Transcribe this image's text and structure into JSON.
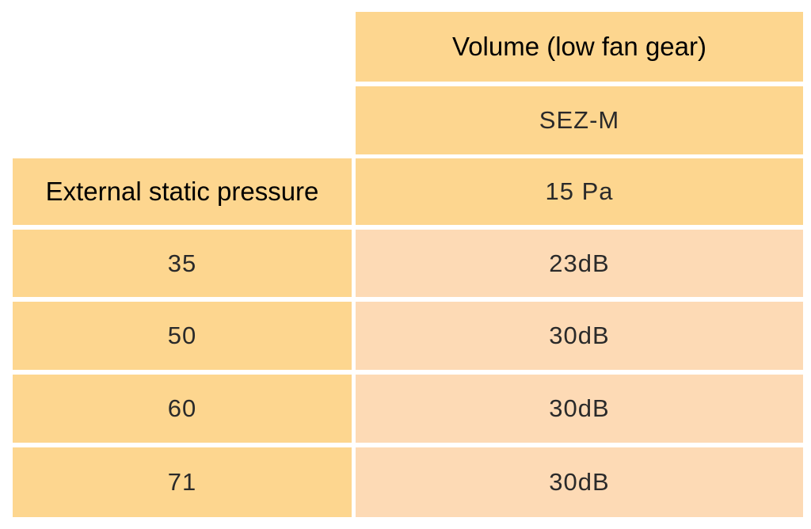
{
  "table": {
    "header_volume": "Volume (low fan gear)",
    "header_model": "SEZ-M",
    "header_row_label": "External static pressure",
    "header_row_value": "15 Pa",
    "rows": [
      {
        "pressure": "35",
        "volume": "23dB"
      },
      {
        "pressure": "50",
        "volume": "30dB"
      },
      {
        "pressure": "60",
        "volume": "30dB"
      },
      {
        "pressure": "71",
        "volume": "30dB"
      }
    ],
    "colors": {
      "header_fill": "#fdd68f",
      "value_fill": "#fddab5"
    }
  }
}
